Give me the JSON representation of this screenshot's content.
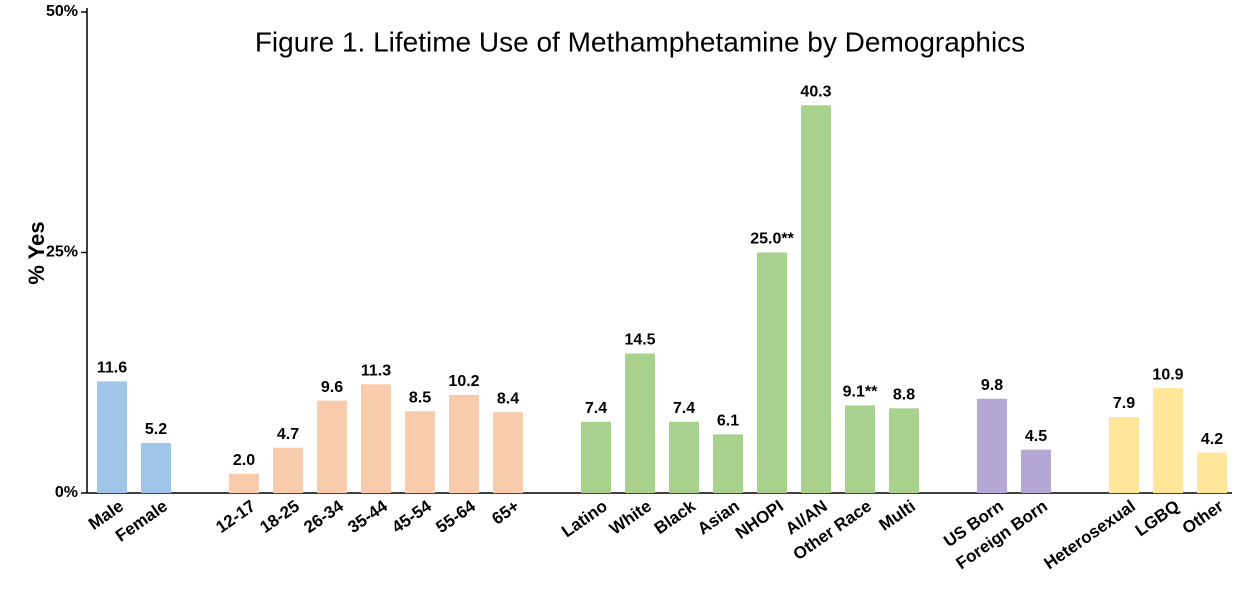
{
  "chart_data": {
    "type": "bar",
    "title": "Figure 1. Lifetime Use of Methamphetamine by Demographics",
    "ylabel": "% Yes",
    "ylim": [
      0,
      50
    ],
    "yticks": [
      {
        "value": 0,
        "label": "0%"
      },
      {
        "value": 25,
        "label": "25%"
      },
      {
        "value": 50,
        "label": "50%"
      }
    ],
    "groups": [
      {
        "color": "#9fc5e8",
        "categories": [
          "Male",
          "Female"
        ],
        "values": [
          11.6,
          5.2
        ],
        "value_labels": [
          "11.6",
          "5.2"
        ]
      },
      {
        "color": "#f8cbad",
        "categories": [
          "12-17",
          "18-25",
          "26-34",
          "35-44",
          "45-54",
          "55-64",
          "65+"
        ],
        "values": [
          2.0,
          4.7,
          9.6,
          11.3,
          8.5,
          10.2,
          8.4
        ],
        "value_labels": [
          "2.0",
          "4.7",
          "9.6",
          "11.3",
          "8.5",
          "10.2",
          "8.4"
        ]
      },
      {
        "color": "#a9d18e",
        "categories": [
          "Latino",
          "White",
          "Black",
          "Asian",
          "NHOPI",
          "AI/AN",
          "Other Race",
          "Multi"
        ],
        "values": [
          7.4,
          14.5,
          7.4,
          6.1,
          25.0,
          40.3,
          9.1,
          8.8
        ],
        "value_labels": [
          "7.4",
          "14.5",
          "7.4",
          "6.1",
          "25.0**",
          "40.3",
          "9.1**",
          "8.8"
        ]
      },
      {
        "color": "#b4a7d6",
        "categories": [
          "US Born",
          "Foreign Born"
        ],
        "values": [
          9.8,
          4.5
        ],
        "value_labels": [
          "9.8",
          "4.5"
        ]
      },
      {
        "color": "#ffe699",
        "categories": [
          "Heterosexual",
          "LGBQ",
          "Other"
        ],
        "values": [
          7.9,
          10.9,
          4.2
        ],
        "value_labels": [
          "7.9",
          "10.9",
          "4.2"
        ]
      }
    ]
  }
}
